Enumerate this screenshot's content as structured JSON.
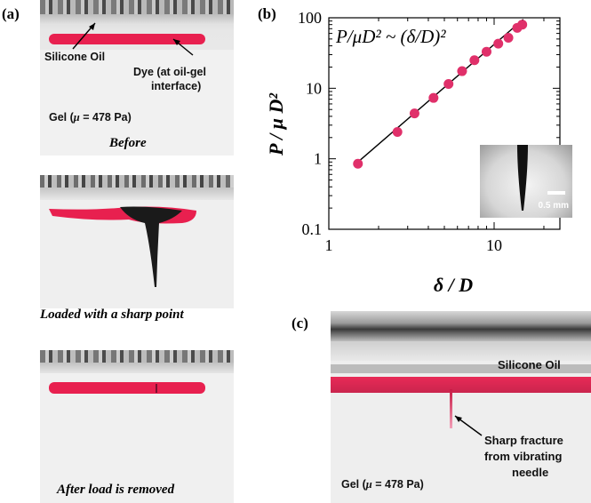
{
  "panel_a": {
    "letter": "(a)",
    "top": {
      "silicone_oil": "Silicone Oil",
      "dye_line1": "Dye (at oil-gel",
      "dye_line2": "interface)",
      "gel_label": "Gel (",
      "mu": "μ",
      "gel_value": " = 478 Pa)",
      "caption": "Before"
    },
    "middle": {
      "caption": "Loaded with a sharp point"
    },
    "bottom": {
      "caption": "After load is removed"
    }
  },
  "panel_b": {
    "letter": "(b)",
    "formula_left": "P/μD² ~ (δ/D)²",
    "inset_scale": "0.5 mm"
  },
  "panel_c": {
    "letter": "(c)",
    "silicone_oil": "Silicone Oil",
    "fracture_line1": "Sharp fracture",
    "fracture_line2": "from vibrating",
    "fracture_line3": "needle",
    "gel_label": "Gel (",
    "mu": "μ",
    "gel_value": " = 478 Pa)"
  },
  "chart_data": {
    "type": "scatter",
    "xlabel": "δ / D",
    "ylabel": "P / μ D²",
    "x_scale": "log",
    "y_scale": "log",
    "xlim": [
      1,
      25
    ],
    "ylim": [
      0.1,
      100
    ],
    "x_ticks": [
      {
        "value": 1,
        "label": "1"
      },
      {
        "value": 10,
        "label": "10"
      }
    ],
    "y_ticks": [
      {
        "value": 0.1,
        "label": "0.1"
      },
      {
        "value": 1,
        "label": "1"
      },
      {
        "value": 10,
        "label": "10"
      },
      {
        "value": 100,
        "label": "100"
      }
    ],
    "annotation": "P/μD² ~ (δ/D)²",
    "marker_color": "#e0306a",
    "series": [
      {
        "x": [
          1.5,
          2.6,
          3.3,
          4.3,
          5.3,
          6.4,
          7.6,
          9.0,
          10.6,
          12.2,
          13.8,
          14.8
        ],
        "y": [
          0.85,
          2.4,
          4.4,
          7.3,
          11.5,
          17.5,
          25,
          33,
          43,
          52,
          72,
          80
        ]
      }
    ],
    "fit_line": {
      "x": [
        1.5,
        15.0
      ],
      "y": [
        0.9,
        95
      ]
    }
  }
}
